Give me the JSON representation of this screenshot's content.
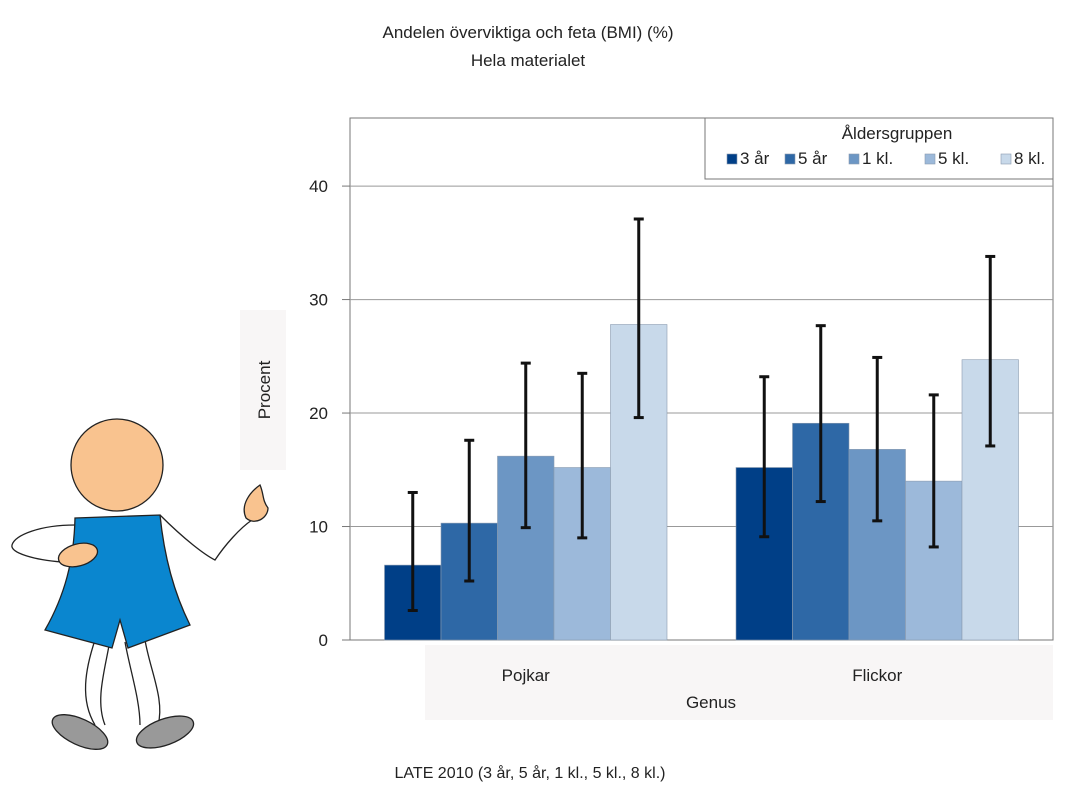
{
  "chart_data": {
    "type": "bar",
    "title": "Andelen överviktiga och feta (BMI) (%)",
    "subtitle": "Hela materialet",
    "xlabel": "Genus",
    "ylabel": "Procent",
    "footnote": "LATE 2010 (3 år, 5 år, 1 kl., 5 kl., 8 kl.)",
    "categories": [
      "Pojkar",
      "Flickor"
    ],
    "ylim": [
      0,
      46
    ],
    "yticks": [
      0,
      10,
      20,
      30,
      40
    ],
    "grid": true,
    "legend_title": "Åldersgruppen",
    "legend_position": "top-right",
    "series": [
      {
        "name": "3 år",
        "color": "#003f87",
        "values": [
          6.6,
          15.2
        ],
        "err_low": [
          2.6,
          9.1
        ],
        "err_high": [
          13.0,
          23.2
        ]
      },
      {
        "name": "5 år",
        "color": "#2e68a6",
        "values": [
          10.3,
          19.1
        ],
        "err_low": [
          5.2,
          12.2
        ],
        "err_high": [
          17.6,
          27.7
        ]
      },
      {
        "name": "1 kl.",
        "color": "#6c96c4",
        "values": [
          16.2,
          16.8
        ],
        "err_low": [
          9.9,
          10.5
        ],
        "err_high": [
          24.4,
          24.9
        ]
      },
      {
        "name": "5 kl.",
        "color": "#9cb9da",
        "values": [
          15.2,
          14.0
        ],
        "err_low": [
          9.0,
          8.2
        ],
        "err_high": [
          23.5,
          21.6
        ]
      },
      {
        "name": "8 kl.",
        "color": "#c8d9ea",
        "values": [
          27.8,
          24.7
        ],
        "err_low": [
          19.6,
          17.1
        ],
        "err_high": [
          37.1,
          33.8
        ]
      }
    ]
  },
  "illustration": {
    "icon": "child-figure-icon"
  }
}
